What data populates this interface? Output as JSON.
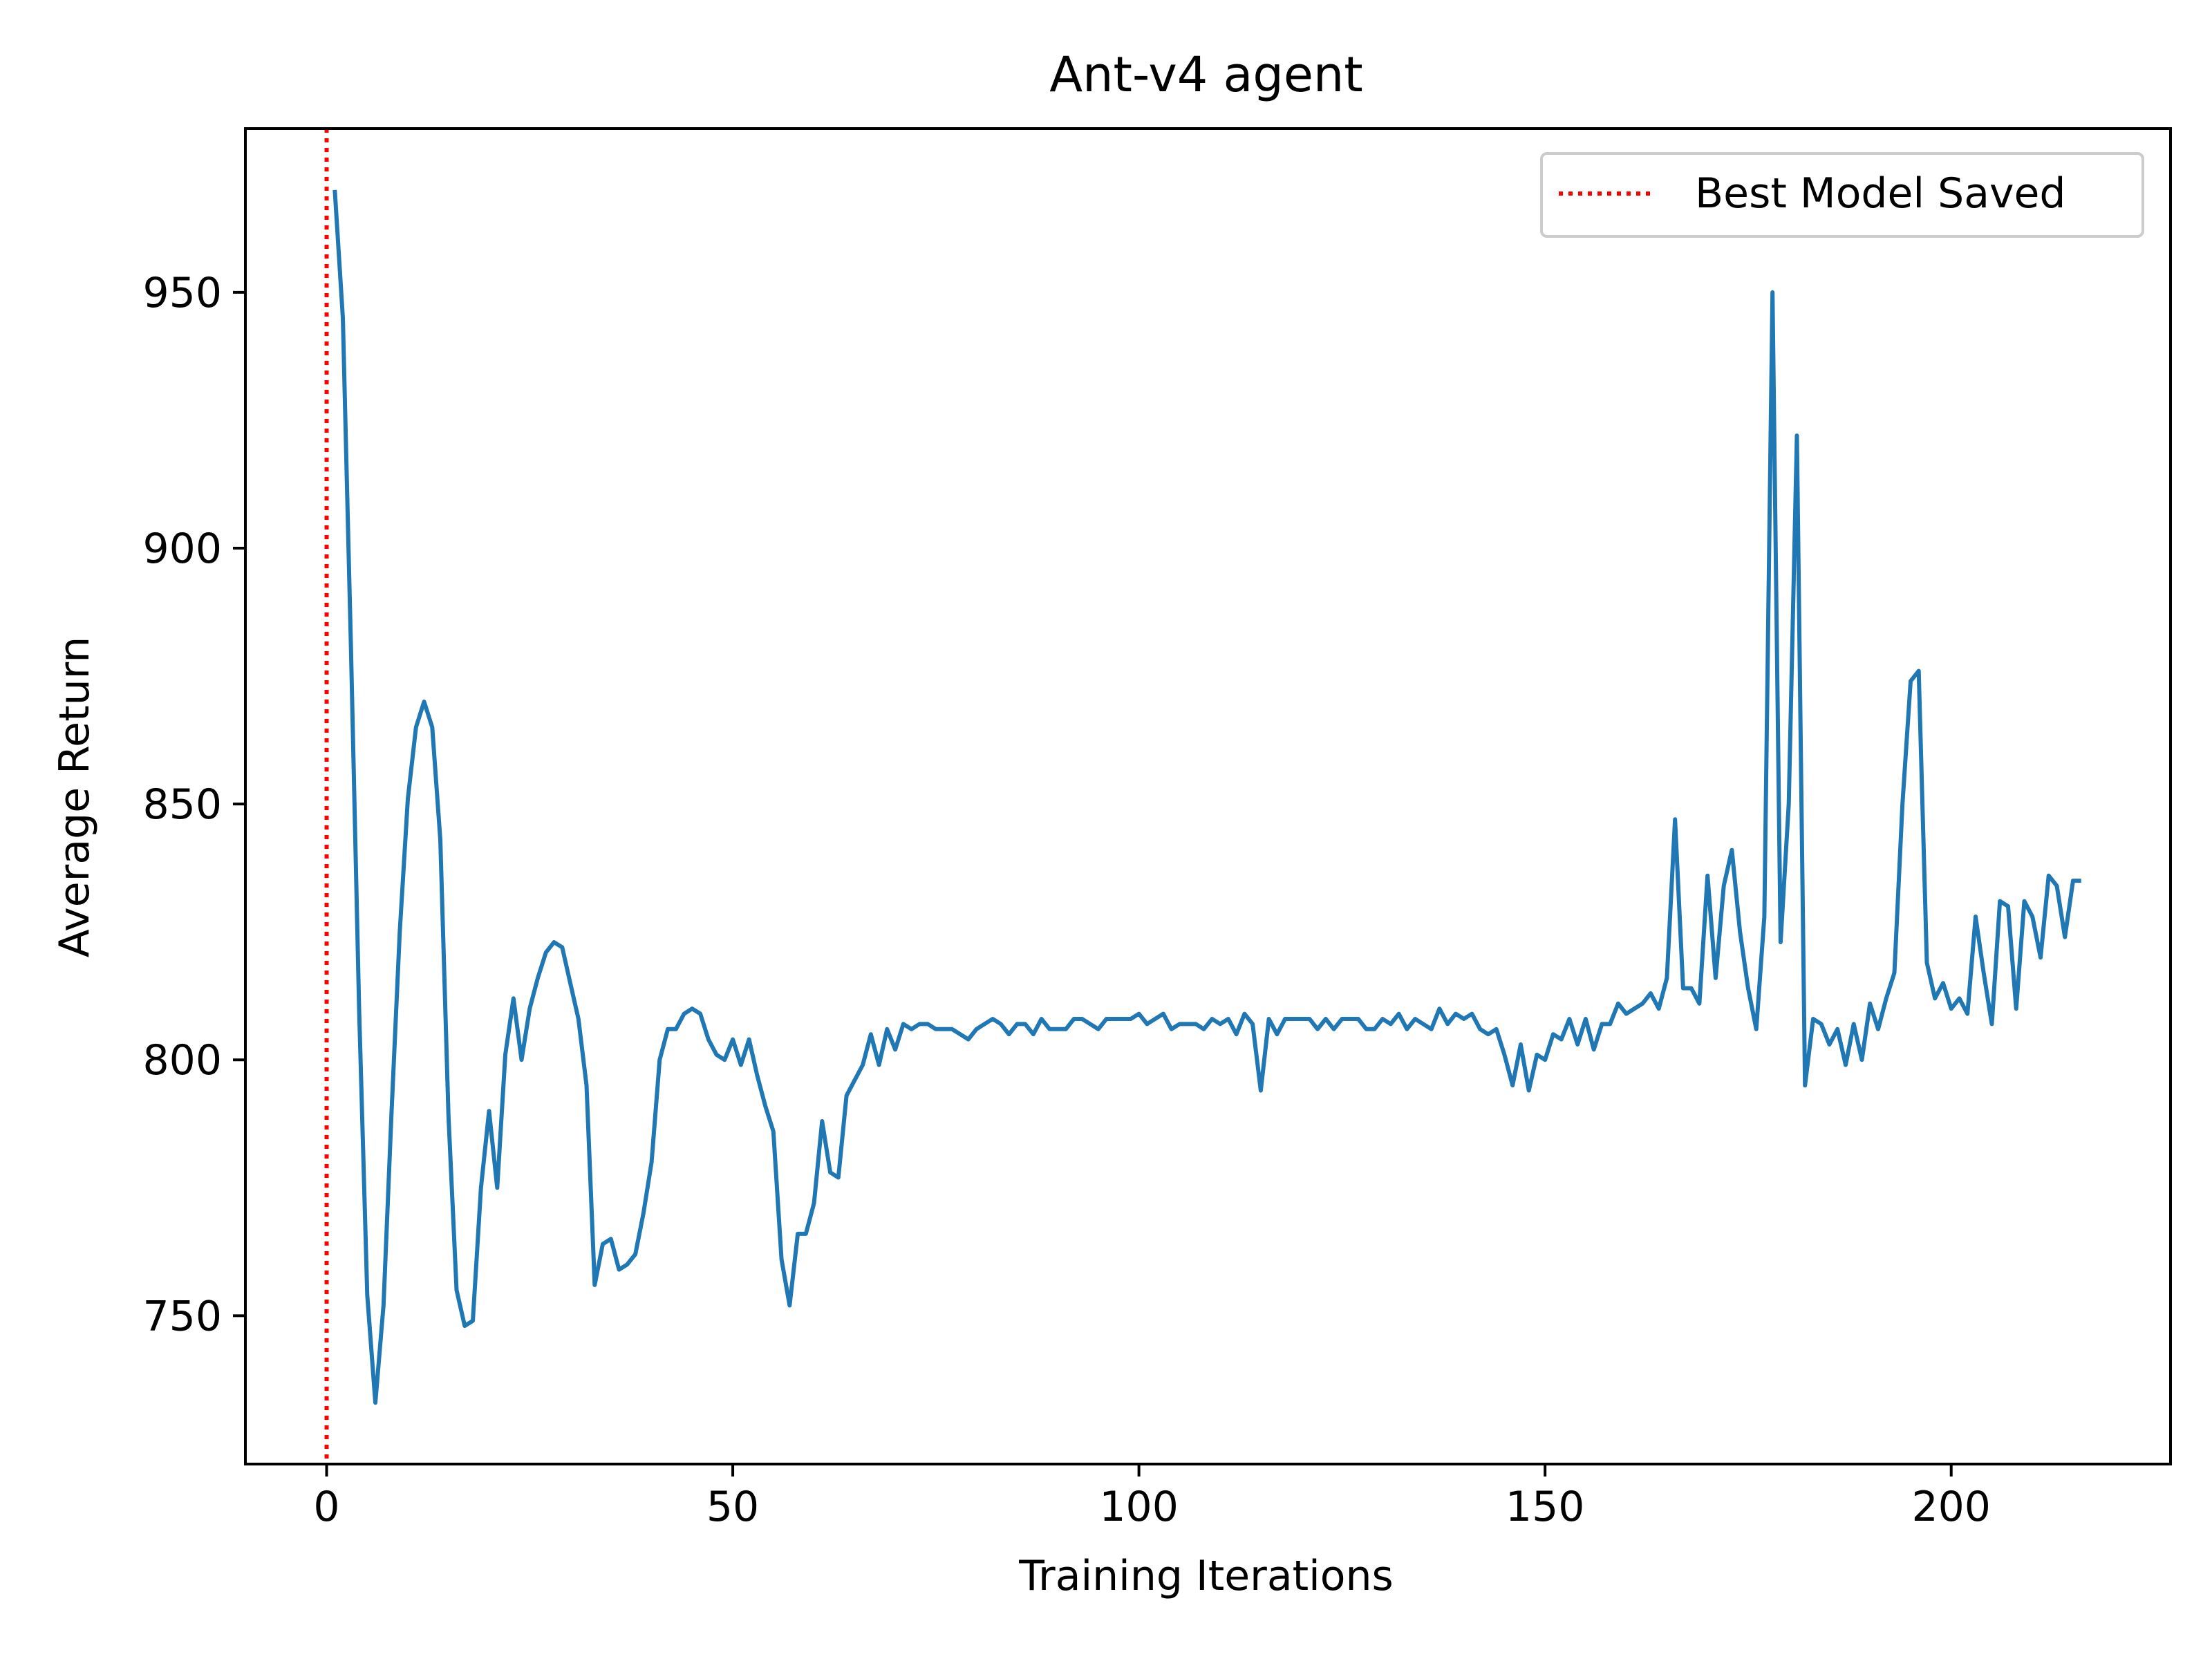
{
  "chart_data": {
    "type": "line",
    "title": "Ant-v4 agent",
    "xlabel": "Training Iterations",
    "ylabel": "Average Return",
    "xlim": [
      -10,
      227
    ],
    "ylim": [
      721,
      982
    ],
    "xticks": [
      0,
      50,
      100,
      150,
      200
    ],
    "yticks": [
      750,
      800,
      850,
      900,
      950
    ],
    "grid": false,
    "legend_position": "upper right",
    "series": [
      {
        "color": "#1f77b4",
        "x": [
          1,
          2,
          3,
          4,
          5,
          6,
          7,
          8,
          9,
          10,
          11,
          12,
          13,
          14,
          15,
          16,
          17,
          18,
          19,
          20,
          21,
          22,
          23,
          24,
          25,
          26,
          27,
          28,
          29,
          30,
          31,
          32,
          33,
          34,
          35,
          36,
          37,
          38,
          39,
          40,
          41,
          42,
          43,
          44,
          45,
          46,
          47,
          48,
          49,
          50,
          51,
          52,
          53,
          54,
          55,
          56,
          57,
          58,
          59,
          60,
          61,
          62,
          63,
          64,
          65,
          66,
          67,
          68,
          69,
          70,
          71,
          72,
          73,
          74,
          75,
          76,
          77,
          78,
          79,
          80,
          81,
          82,
          83,
          84,
          85,
          86,
          87,
          88,
          89,
          90,
          91,
          92,
          93,
          94,
          95,
          96,
          97,
          98,
          99,
          100,
          101,
          102,
          103,
          104,
          105,
          106,
          107,
          108,
          109,
          110,
          111,
          112,
          113,
          114,
          115,
          116,
          117,
          118,
          119,
          120,
          121,
          122,
          123,
          124,
          125,
          126,
          127,
          128,
          129,
          130,
          131,
          132,
          133,
          134,
          135,
          136,
          137,
          138,
          139,
          140,
          141,
          142,
          143,
          144,
          145,
          146,
          147,
          148,
          149,
          150,
          151,
          152,
          153,
          154,
          155,
          156,
          157,
          158,
          159,
          160,
          161,
          162,
          163,
          164,
          165,
          166,
          167,
          168,
          169,
          170,
          171,
          172,
          173,
          174,
          175,
          176,
          177,
          178,
          179,
          180,
          181,
          182,
          183,
          184,
          185,
          186,
          187,
          188,
          189,
          190,
          191,
          192,
          193,
          194,
          195,
          196,
          197,
          198,
          199,
          200,
          201,
          202,
          203,
          204,
          205,
          206,
          207,
          208,
          209,
          210,
          211,
          212,
          213,
          214,
          215,
          216
        ],
        "y": [
          970,
          945,
          880,
          810,
          754,
          733,
          752,
          790,
          825,
          851,
          865,
          870,
          865,
          843,
          789,
          755,
          748,
          749,
          775,
          790,
          775,
          801,
          812,
          800,
          810,
          816,
          821,
          823,
          822,
          815,
          808,
          795,
          756,
          764,
          765,
          759,
          760,
          762,
          770,
          780,
          800,
          806,
          806,
          809,
          810,
          809,
          804,
          801,
          800,
          804,
          799,
          804,
          797,
          791,
          786,
          761,
          752,
          766,
          766,
          772,
          788,
          778,
          777,
          793,
          796,
          799,
          805,
          799,
          806,
          802,
          807,
          806,
          807,
          807,
          806,
          806,
          806,
          805,
          804,
          806,
          807,
          808,
          807,
          805,
          807,
          807,
          805,
          808,
          806,
          806,
          806,
          808,
          808,
          807,
          806,
          808,
          808,
          808,
          808,
          809,
          807,
          808,
          809,
          806,
          807,
          807,
          807,
          806,
          808,
          807,
          808,
          805,
          809,
          807,
          794,
          808,
          805,
          808,
          808,
          808,
          808,
          806,
          808,
          806,
          808,
          808,
          808,
          806,
          806,
          808,
          807,
          809,
          806,
          808,
          807,
          806,
          810,
          807,
          809,
          808,
          809,
          806,
          805,
          806,
          801,
          795,
          803,
          794,
          801,
          800,
          805,
          804,
          808,
          803,
          808,
          802,
          807,
          807,
          811,
          809,
          810,
          811,
          813,
          810,
          816,
          847,
          814,
          814,
          811,
          836,
          816,
          834,
          841,
          825,
          814,
          806,
          828,
          950,
          823,
          850,
          922,
          795,
          808,
          807,
          803,
          806,
          799,
          807,
          800,
          811,
          806,
          812,
          817,
          850,
          874,
          876,
          819,
          812,
          815,
          810,
          812,
          809,
          828,
          817,
          807,
          831,
          830,
          810,
          831,
          828,
          820,
          836,
          834,
          824,
          835,
          835
        ]
      }
    ],
    "best_model_line": {
      "x": 0,
      "color": "#ff0000",
      "label": "Best Model Saved"
    }
  }
}
